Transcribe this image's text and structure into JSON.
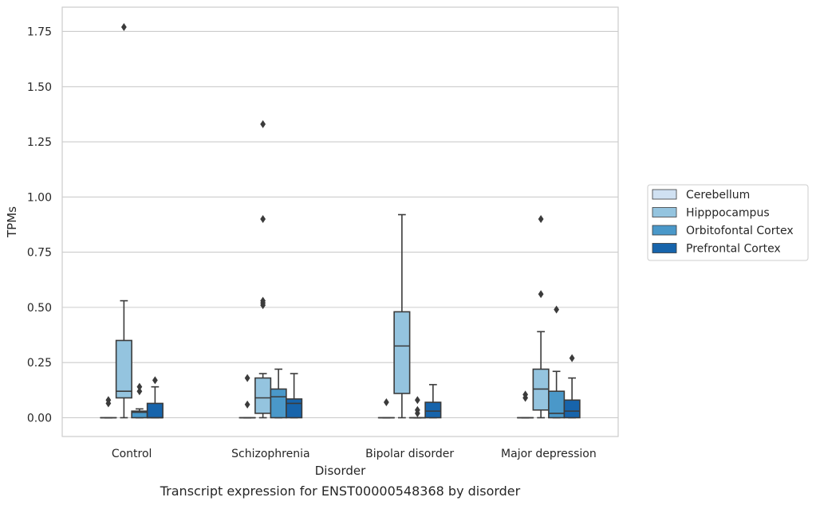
{
  "chart_data": {
    "type": "box",
    "caption": "Transcript expression for ENST00000548368 by disorder",
    "xlabel": "Disorder",
    "ylabel": "TPMs",
    "ylim": [
      -0.085,
      1.86
    ],
    "yticks": [
      0.0,
      0.25,
      0.5,
      0.75,
      1.0,
      1.25,
      1.5,
      1.75
    ],
    "ytick_labels": [
      "0.00",
      "0.25",
      "0.50",
      "0.75",
      "1.00",
      "1.25",
      "1.50",
      "1.75"
    ],
    "grid": "horizontal",
    "legend_position": "right",
    "categories": [
      "Control",
      "Schizophrenia",
      "Bipolar disorder",
      "Major depression"
    ],
    "series": [
      {
        "name": "Cerebellum",
        "color": "#d0e1f2",
        "boxes": [
          {
            "whislo": 0,
            "q1": 0,
            "med": 0,
            "q3": 0,
            "whishi": 0,
            "fliers": [
              0.065,
              0.08
            ]
          },
          {
            "whislo": 0,
            "q1": 0,
            "med": 0,
            "q3": 0,
            "whishi": 0,
            "fliers": [
              0.06,
              0.18
            ]
          },
          {
            "whislo": 0,
            "q1": 0,
            "med": 0,
            "q3": 0,
            "whishi": 0,
            "fliers": [
              0.07
            ]
          },
          {
            "whislo": 0,
            "q1": 0,
            "med": 0,
            "q3": 0,
            "whishi": 0,
            "fliers": [
              0.09,
              0.105
            ]
          }
        ]
      },
      {
        "name": "Hipppocampus",
        "color": "#94c4df",
        "boxes": [
          {
            "whislo": 0,
            "q1": 0.09,
            "med": 0.12,
            "q3": 0.35,
            "whishi": 0.53,
            "fliers": [
              1.77
            ]
          },
          {
            "whislo": 0,
            "q1": 0.02,
            "med": 0.09,
            "q3": 0.18,
            "whishi": 0.2,
            "fliers": [
              0.51,
              0.52,
              0.53,
              0.9,
              1.33
            ]
          },
          {
            "whislo": 0,
            "q1": 0.11,
            "med": 0.325,
            "q3": 0.48,
            "whishi": 0.92,
            "fliers": []
          },
          {
            "whislo": 0,
            "q1": 0.035,
            "med": 0.13,
            "q3": 0.22,
            "whishi": 0.39,
            "fliers": [
              0.56,
              0.9
            ]
          }
        ]
      },
      {
        "name": "Orbitofontal Cortex",
        "color": "#4a98c9",
        "boxes": [
          {
            "whislo": 0,
            "q1": 0,
            "med": 0.025,
            "q3": 0.03,
            "whishi": 0.04,
            "fliers": [
              0.12,
              0.14
            ]
          },
          {
            "whislo": 0,
            "q1": 0,
            "med": 0.095,
            "q3": 0.13,
            "whishi": 0.22,
            "fliers": []
          },
          {
            "whislo": 0,
            "q1": 0,
            "med": 0,
            "q3": 0,
            "whishi": 0,
            "fliers": [
              0.02,
              0.035,
              0.08
            ]
          },
          {
            "whislo": 0,
            "q1": 0,
            "med": 0.02,
            "q3": 0.12,
            "whishi": 0.21,
            "fliers": [
              0.49
            ]
          }
        ]
      },
      {
        "name": "Prefrontal Cortex",
        "color": "#1764ab",
        "boxes": [
          {
            "whislo": 0,
            "q1": 0,
            "med": 0,
            "q3": 0.065,
            "whishi": 0.14,
            "fliers": [
              0.17
            ]
          },
          {
            "whislo": 0,
            "q1": 0,
            "med": 0.065,
            "q3": 0.085,
            "whishi": 0.2,
            "fliers": []
          },
          {
            "whislo": 0,
            "q1": 0,
            "med": 0.03,
            "q3": 0.07,
            "whishi": 0.15,
            "fliers": []
          },
          {
            "whislo": 0,
            "q1": 0,
            "med": 0.03,
            "q3": 0.08,
            "whishi": 0.18,
            "fliers": [
              0.27
            ]
          }
        ]
      }
    ]
  }
}
